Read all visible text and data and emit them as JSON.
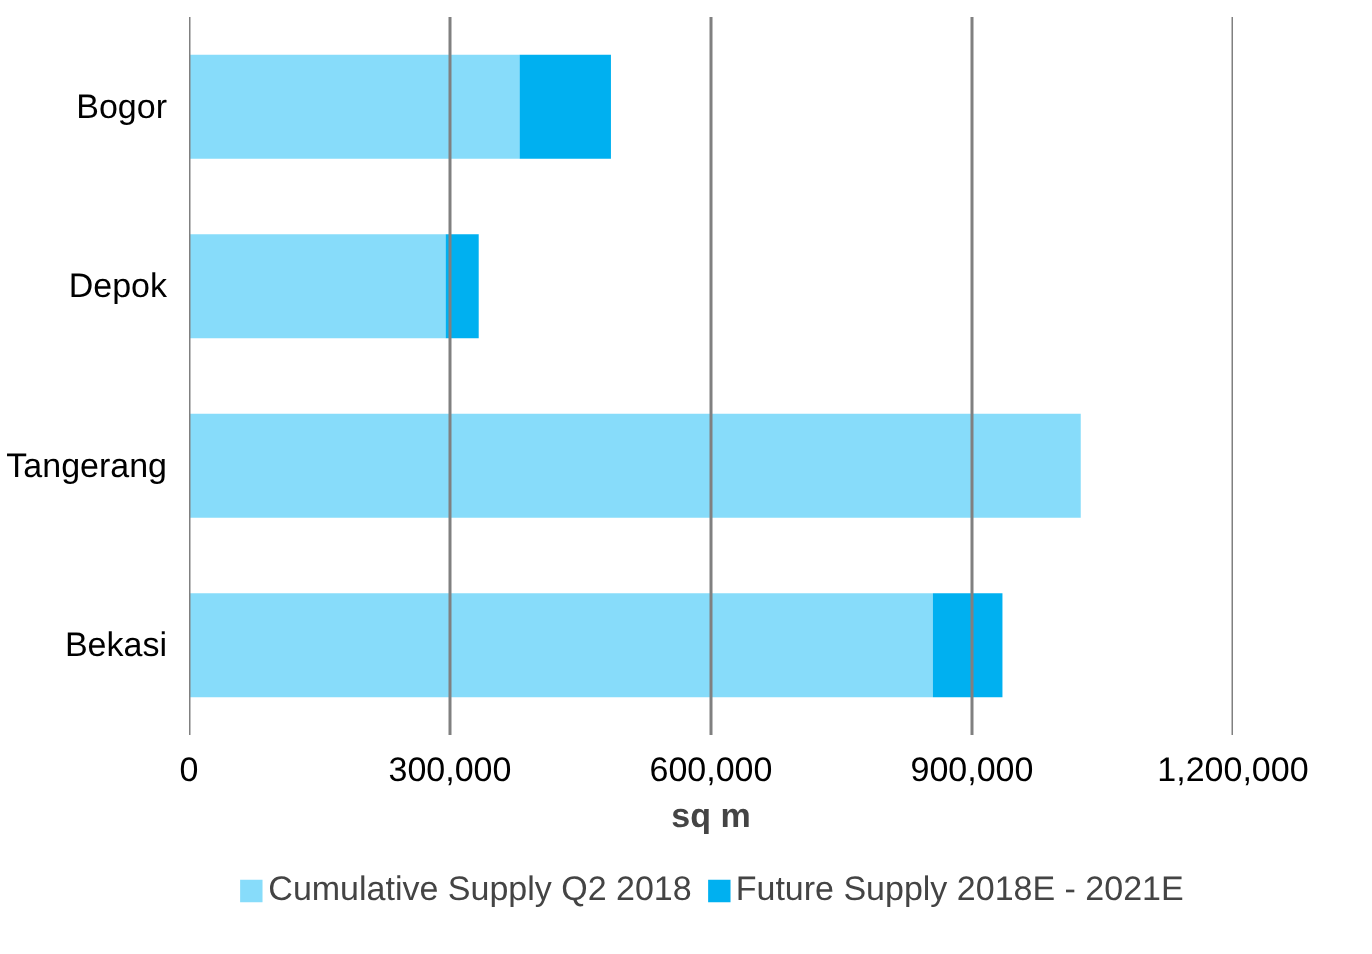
{
  "chart_data": {
    "type": "bar",
    "orientation": "horizontal",
    "stacked": true,
    "xlabel": "sq m",
    "categories": [
      "Bogor",
      "Depok",
      "Tangerang",
      "Bekasi"
    ],
    "series": [
      {
        "name": "Cumulative Supply Q2 2018",
        "color": "#87dcfa",
        "values": [
          380000,
          295000,
          1025000,
          855000
        ]
      },
      {
        "name": "Future Supply 2018E - 2021E",
        "color": "#00b0f0",
        "values": [
          105000,
          38000,
          0,
          80000
        ]
      }
    ],
    "xlim": [
      0,
      1200000
    ],
    "xticks": [
      {
        "value": 0,
        "label": "0"
      },
      {
        "value": 300000,
        "label": "300,000"
      },
      {
        "value": 600000,
        "label": "600,000"
      },
      {
        "value": 900000,
        "label": "900,000"
      },
      {
        "value": 1200000,
        "label": "1,200,000"
      }
    ],
    "grid": "x",
    "legend": "bottom"
  }
}
